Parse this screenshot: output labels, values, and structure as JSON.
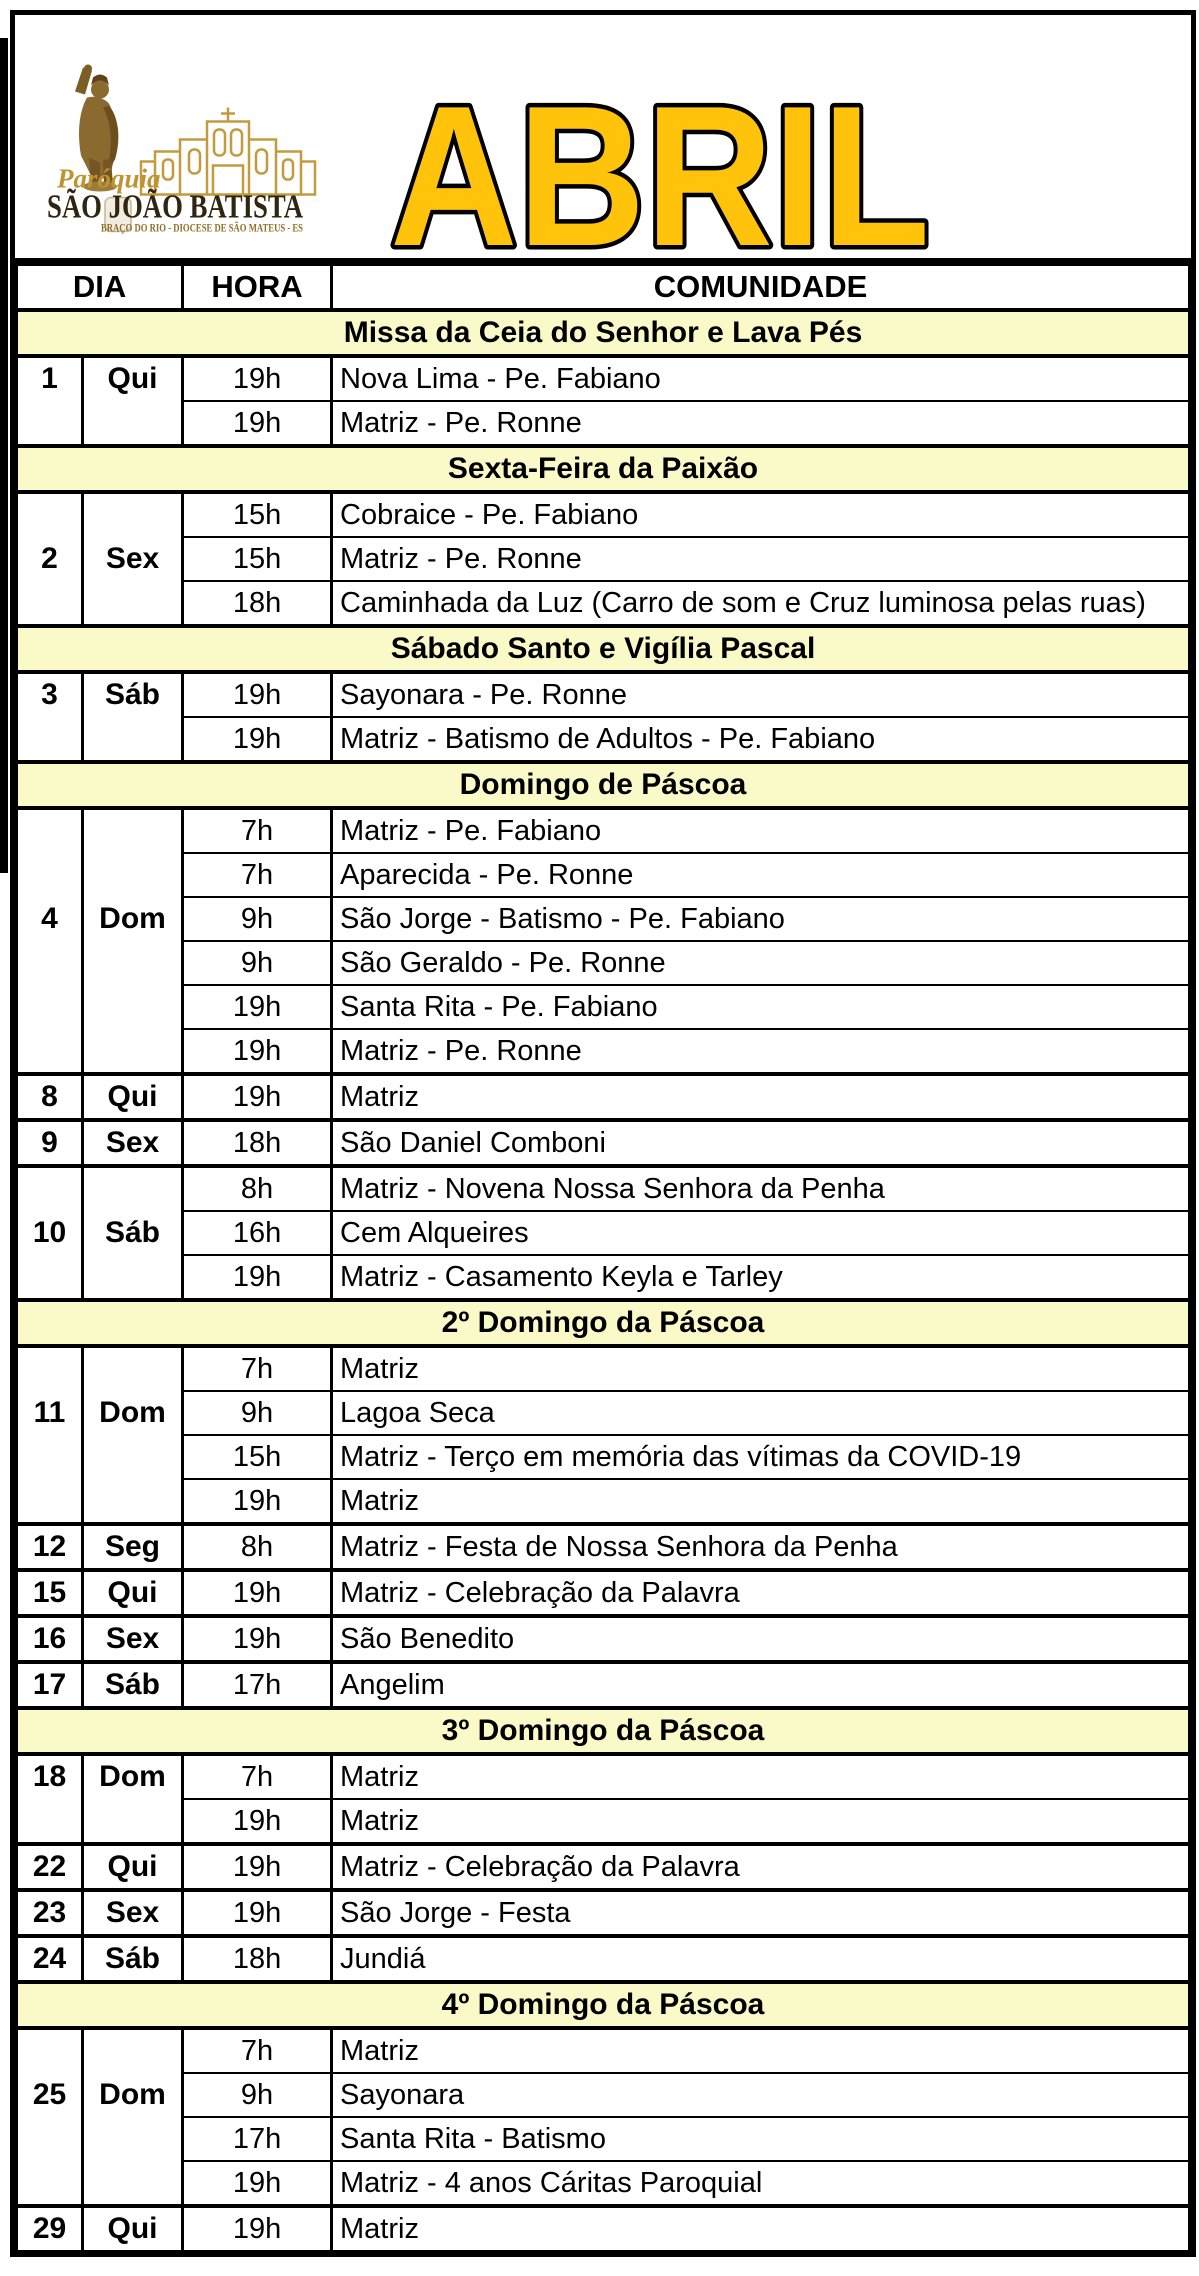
{
  "page": {
    "title": "ABRIL",
    "title_fill": "#FFC30B",
    "title_outline": "#000000",
    "section_bg": "#FAFAC8",
    "border_color": "#000000",
    "logo_gold": "#BE9433",
    "logo_dark": "#302510"
  },
  "logo": {
    "caption": "Paróquia",
    "name": "SÃO JOÃO BATISTA",
    "subtitle": "BRAÇO DO RIO - DIOCESE DE SÃO MATEUS - ES"
  },
  "table": {
    "headers": {
      "dia": "DIA",
      "hora": "HORA",
      "comunidade": "COMUNIDADE"
    },
    "blocks": [
      {
        "type": "section",
        "label": "Missa da Ceia do Senhor e Lava Pés"
      },
      {
        "type": "group",
        "day": "1",
        "weekday": "Qui",
        "rows": [
          {
            "hora": "19h",
            "comunidade": "Nova Lima - Pe. Fabiano"
          },
          {
            "hora": "19h",
            "comunidade": "Matriz - Pe. Ronne"
          }
        ]
      },
      {
        "type": "section",
        "label": "Sexta-Feira da Paixão"
      },
      {
        "type": "group",
        "day": "2",
        "weekday": "Sex",
        "rows": [
          {
            "hora": "15h",
            "comunidade": "Cobraice - Pe. Fabiano"
          },
          {
            "hora": "15h",
            "comunidade": "Matriz - Pe. Ronne"
          },
          {
            "hora": "18h",
            "comunidade": "Caminhada da Luz (Carro de som e Cruz luminosa pelas ruas)"
          }
        ]
      },
      {
        "type": "section",
        "label": "Sábado Santo e Vigília Pascal"
      },
      {
        "type": "group",
        "day": "3",
        "weekday": "Sáb",
        "rows": [
          {
            "hora": "19h",
            "comunidade": "Sayonara - Pe. Ronne"
          },
          {
            "hora": "19h",
            "comunidade": "Matriz - Batismo de Adultos - Pe. Fabiano"
          }
        ]
      },
      {
        "type": "section",
        "label": "Domingo de Páscoa"
      },
      {
        "type": "group",
        "day": "4",
        "weekday": "Dom",
        "rows": [
          {
            "hora": "7h",
            "comunidade": "Matriz - Pe. Fabiano"
          },
          {
            "hora": "7h",
            "comunidade": "Aparecida - Pe. Ronne"
          },
          {
            "hora": "9h",
            "comunidade": "São Jorge - Batismo - Pe. Fabiano"
          },
          {
            "hora": "9h",
            "comunidade": "São Geraldo - Pe. Ronne"
          },
          {
            "hora": "19h",
            "comunidade": "Santa Rita - Pe. Fabiano"
          },
          {
            "hora": "19h",
            "comunidade": "Matriz - Pe. Ronne"
          }
        ]
      },
      {
        "type": "group",
        "day": "8",
        "weekday": "Qui",
        "rows": [
          {
            "hora": "19h",
            "comunidade": "Matriz"
          }
        ]
      },
      {
        "type": "group",
        "day": "9",
        "weekday": "Sex",
        "rows": [
          {
            "hora": "18h",
            "comunidade": "São Daniel Comboni"
          }
        ]
      },
      {
        "type": "group",
        "day": "10",
        "weekday": "Sáb",
        "rows": [
          {
            "hora": "8h",
            "comunidade": "Matriz - Novena Nossa Senhora da Penha"
          },
          {
            "hora": "16h",
            "comunidade": "Cem Alqueires"
          },
          {
            "hora": "19h",
            "comunidade": "Matriz - Casamento Keyla e Tarley"
          }
        ]
      },
      {
        "type": "section",
        "label": "2º Domingo da Páscoa"
      },
      {
        "type": "group",
        "day": "11",
        "weekday": "Dom",
        "rows": [
          {
            "hora": "7h",
            "comunidade": "Matriz"
          },
          {
            "hora": "9h",
            "comunidade": "Lagoa Seca"
          },
          {
            "hora": "15h",
            "comunidade": "Matriz - Terço em memória das vítimas da COVID-19"
          },
          {
            "hora": "19h",
            "comunidade": "Matriz"
          }
        ]
      },
      {
        "type": "group",
        "day": "12",
        "weekday": "Seg",
        "rows": [
          {
            "hora": "8h",
            "comunidade": "Matriz - Festa de Nossa Senhora da Penha"
          }
        ]
      },
      {
        "type": "group",
        "day": "15",
        "weekday": "Qui",
        "rows": [
          {
            "hora": "19h",
            "comunidade": "Matriz - Celebração da Palavra"
          }
        ]
      },
      {
        "type": "group",
        "day": "16",
        "weekday": "Sex",
        "rows": [
          {
            "hora": "19h",
            "comunidade": "São Benedito"
          }
        ]
      },
      {
        "type": "group",
        "day": "17",
        "weekday": "Sáb",
        "rows": [
          {
            "hora": "17h",
            "comunidade": "Angelim"
          }
        ]
      },
      {
        "type": "section",
        "label": "3º Domingo da Páscoa"
      },
      {
        "type": "group",
        "day": "18",
        "weekday": "Dom",
        "rows": [
          {
            "hora": "7h",
            "comunidade": "Matriz"
          },
          {
            "hora": "19h",
            "comunidade": "Matriz"
          }
        ]
      },
      {
        "type": "group",
        "day": "22",
        "weekday": "Qui",
        "rows": [
          {
            "hora": "19h",
            "comunidade": "Matriz - Celebração da Palavra"
          }
        ]
      },
      {
        "type": "group",
        "day": "23",
        "weekday": "Sex",
        "rows": [
          {
            "hora": "19h",
            "comunidade": "São Jorge - Festa"
          }
        ]
      },
      {
        "type": "group",
        "day": "24",
        "weekday": "Sáb",
        "rows": [
          {
            "hora": "18h",
            "comunidade": "Jundiá"
          }
        ]
      },
      {
        "type": "section",
        "label": "4º Domingo da Páscoa"
      },
      {
        "type": "group",
        "day": "25",
        "weekday": "Dom",
        "rows": [
          {
            "hora": "7h",
            "comunidade": "Matriz"
          },
          {
            "hora": "9h",
            "comunidade": "Sayonara"
          },
          {
            "hora": "17h",
            "comunidade": "Santa Rita - Batismo"
          },
          {
            "hora": "19h",
            "comunidade": "Matriz - 4 anos Cáritas Paroquial"
          }
        ]
      },
      {
        "type": "group",
        "day": "29",
        "weekday": "Qui",
        "rows": [
          {
            "hora": "19h",
            "comunidade": "Matriz"
          }
        ]
      }
    ]
  }
}
